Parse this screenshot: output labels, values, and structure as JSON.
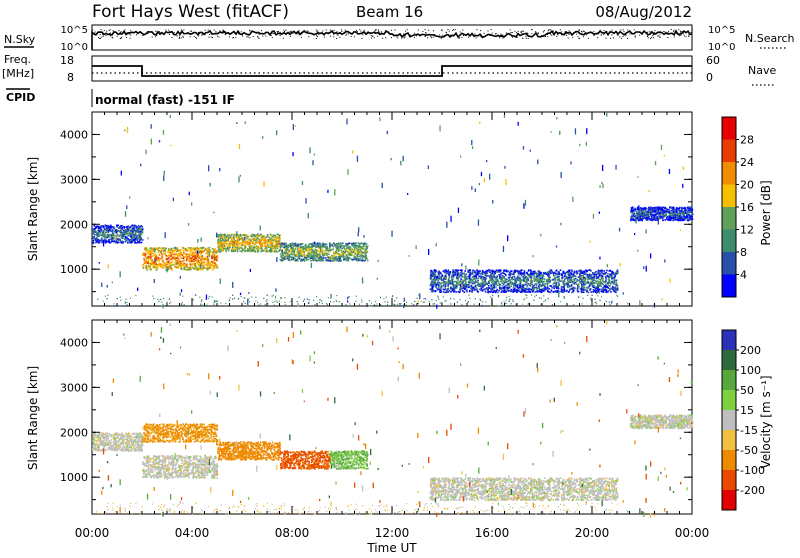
{
  "header": {
    "station": "Fort Hays West (fitACF)",
    "beam": "Beam 16",
    "date": "08/Aug/2012"
  },
  "left_labels": {
    "nsky": "N.Sky",
    "freq": "Freq.",
    "freq_unit": "[MHz]",
    "cpid": "CPID"
  },
  "right_labels": {
    "nsearch": "N.Search",
    "nave": "Nave"
  },
  "mode_text": "normal (fast) -151 IF",
  "time_axis": {
    "label": "Time UT",
    "ticks": [
      "00:00",
      "04:00",
      "08:00",
      "12:00",
      "16:00",
      "20:00",
      "00:00"
    ]
  },
  "panels": {
    "power": {
      "ylabel": "Slant Range [km]",
      "yticks": [
        "1000",
        "2000",
        "3000",
        "4000"
      ],
      "colorbar_label": "Power [dB]",
      "colorbar_ticks": [
        "4",
        "8",
        "12",
        "16",
        "20",
        "24",
        "28"
      ]
    },
    "velocity": {
      "ylabel": "Slant Range [km]",
      "yticks": [
        "1000",
        "2000",
        "3000",
        "4000"
      ],
      "colorbar_label": "Velocity [m s⁻¹]",
      "colorbar_ticks": [
        "200",
        "100",
        "50",
        "15",
        "-15",
        "-50",
        "-100",
        "-200"
      ]
    }
  },
  "noise_panel": {
    "left_ticks": [
      "10^5",
      "10^0"
    ],
    "right_ticks": [
      "10^5",
      "10^0"
    ]
  },
  "freq_panel": {
    "left_ticks": [
      "18",
      "8"
    ],
    "right_ticks": [
      "60",
      "0"
    ]
  },
  "colors": {
    "power_scale": [
      "#0000ff",
      "#2850a8",
      "#3c8c6e",
      "#5fa05a",
      "#f5c000",
      "#f08c00",
      "#e83c00",
      "#e60000"
    ],
    "velocity_scale": [
      "#2a33b8",
      "#2f6a3c",
      "#57a83c",
      "#7fd040",
      "#bfbfbf",
      "#f0c040",
      "#ee8a00",
      "#e84a00",
      "#e00000"
    ],
    "ground_scatter": "#c0c0c0"
  },
  "chart_data": [
    {
      "type": "heatmap",
      "title": "Power",
      "xlabel": "Time UT",
      "ylabel": "Slant Range [km]",
      "xlim": [
        "00:00",
        "24:00"
      ],
      "ylim": [
        180,
        4500
      ],
      "value_label": "Power [dB]",
      "value_range": [
        0,
        30
      ],
      "features": [
        {
          "start": "00:00",
          "end": "02:00",
          "range_km": [
            1600,
            2000
          ],
          "level_db": 10
        },
        {
          "start": "02:00",
          "end": "05:00",
          "range_km": [
            1000,
            1500
          ],
          "level_db": 24
        },
        {
          "start": "05:00",
          "end": "07:30",
          "range_km": [
            1400,
            1800
          ],
          "level_db": 20
        },
        {
          "start": "07:30",
          "end": "11:00",
          "range_km": [
            1200,
            1600
          ],
          "level_db": 16
        },
        {
          "start": "13:30",
          "end": "21:00",
          "range_km": [
            500,
            1000
          ],
          "level_db": 10
        },
        {
          "start": "21:30",
          "end": "24:00",
          "range_km": [
            2100,
            2400
          ],
          "level_db": 8
        }
      ]
    },
    {
      "type": "heatmap",
      "title": "Velocity",
      "xlabel": "Time UT",
      "ylabel": "Slant Range [km]",
      "xlim": [
        "00:00",
        "24:00"
      ],
      "ylim": [
        180,
        4500
      ],
      "value_label": "Velocity [m s⁻¹]",
      "value_range": [
        -200,
        200
      ],
      "features": [
        {
          "start": "00:00",
          "end": "02:00",
          "range_km": [
            1600,
            2000
          ],
          "velocity": 0
        },
        {
          "start": "02:00",
          "end": "05:00",
          "range_km": [
            1000,
            1500
          ],
          "velocity": 0
        },
        {
          "start": "02:00",
          "end": "05:00",
          "range_km": [
            1800,
            2200
          ],
          "velocity": -60
        },
        {
          "start": "05:00",
          "end": "07:30",
          "range_km": [
            1400,
            1800
          ],
          "velocity": -80
        },
        {
          "start": "07:30",
          "end": "09:30",
          "range_km": [
            1200,
            1600
          ],
          "velocity": -110
        },
        {
          "start": "09:30",
          "end": "11:00",
          "range_km": [
            1200,
            1600
          ],
          "velocity": 30
        },
        {
          "start": "13:30",
          "end": "21:00",
          "range_km": [
            500,
            1000
          ],
          "velocity": 0
        },
        {
          "start": "21:30",
          "end": "24:00",
          "range_km": [
            2100,
            2400
          ],
          "velocity": 0
        }
      ]
    },
    {
      "type": "line",
      "title": "Frequency",
      "x": [
        "00:00",
        "02:00",
        "02:00",
        "14:00",
        "14:00",
        "24:00"
      ],
      "y": [
        14,
        14,
        10,
        10,
        14,
        14
      ],
      "ylabel": "Freq. [MHz]"
    }
  ]
}
